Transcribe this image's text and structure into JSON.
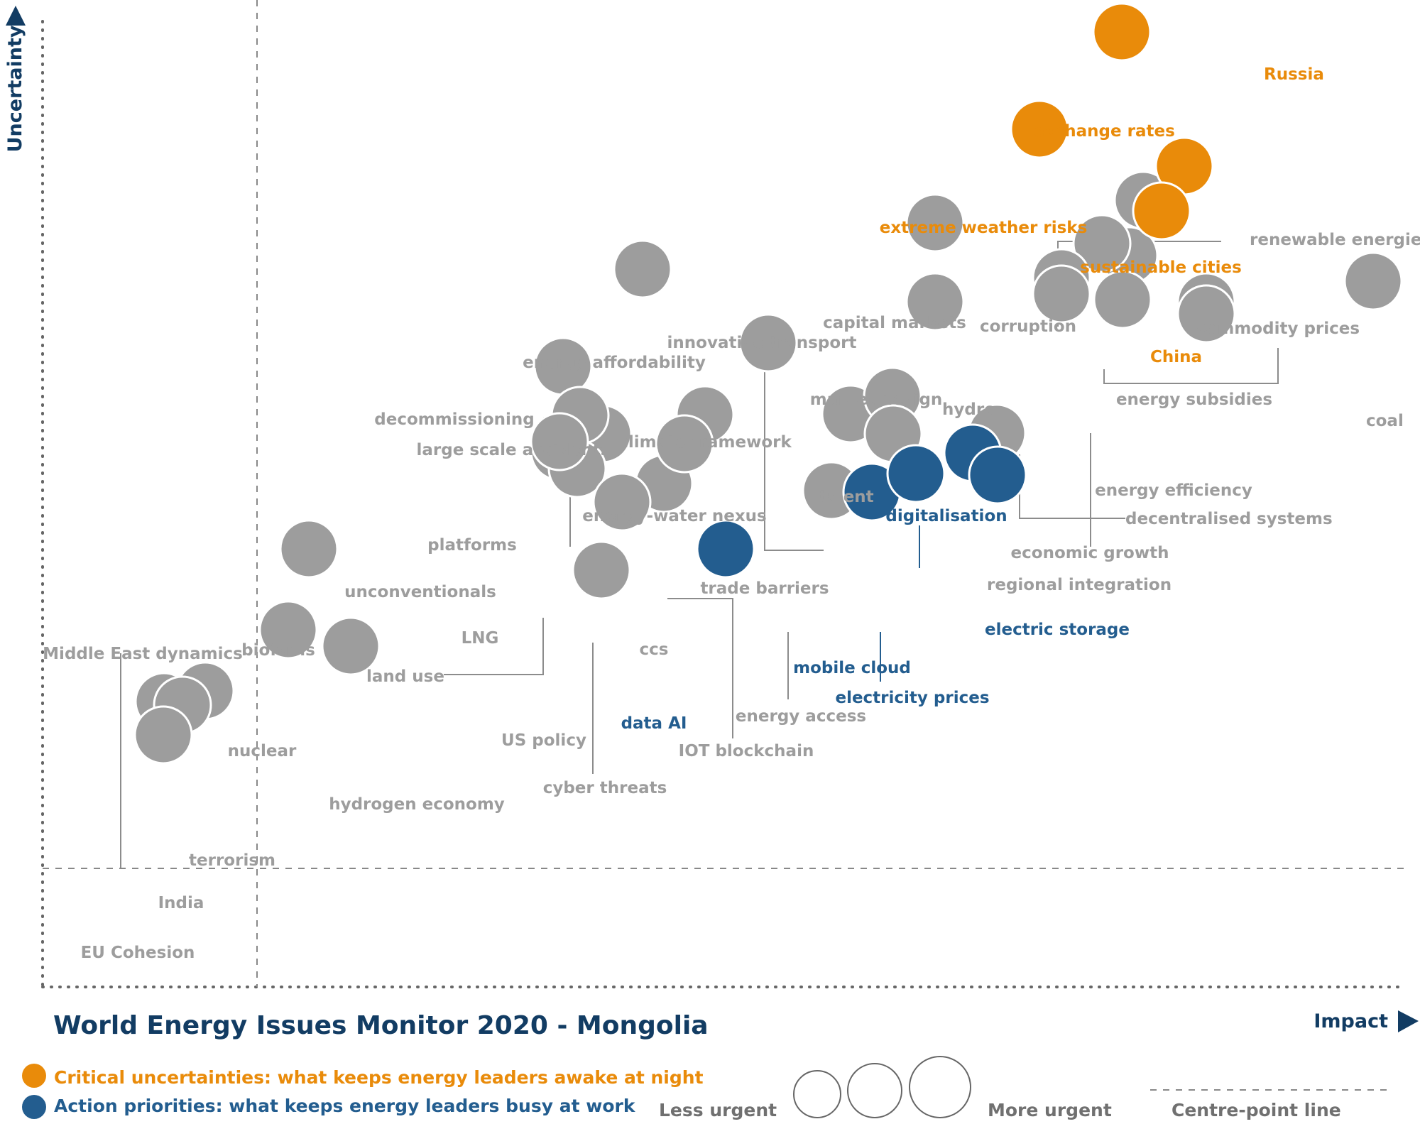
{
  "chart_data": {
    "type": "scatter",
    "title": "World Energy Issues Monitor 2020 - Mongolia",
    "xlabel": "Impact",
    "ylabel": "Uncertainty",
    "colors": {
      "neutral": "#9d9d9d",
      "critical": "#e98b0a",
      "action": "#235d8f",
      "title": "#123c63",
      "axis": "#555555"
    },
    "points": [
      {
        "label": "Russia",
        "impact": 1728,
        "uncertainty": 1480,
        "category": "critical"
      },
      {
        "label": "exchange rates",
        "impact": 1520,
        "uncertainty": 1345,
        "category": "critical"
      },
      {
        "label": "extreme weather risks",
        "impact": 1404,
        "uncertainty": 1208,
        "category": "critical"
      },
      {
        "label": "sustainable cities",
        "impact": 1608,
        "uncertainty": 1156,
        "category": "critical"
      },
      {
        "label": "China",
        "impact": 1576,
        "uncertainty": 1093,
        "category": "critical"
      },
      {
        "label": "corruption",
        "impact": 1550,
        "uncertainty": 1108,
        "category": "neutral"
      },
      {
        "label": "renewable energies",
        "impact": 1530,
        "uncertainty": 1030,
        "category": "neutral"
      },
      {
        "label": "commodity prices",
        "impact": 1492,
        "uncertainty": 1047,
        "category": "neutral"
      },
      {
        "label": "hydro",
        "impact": 1435,
        "uncertainty": 999,
        "category": "neutral"
      },
      {
        "label": "decentralised systems",
        "impact": 1435,
        "uncertainty": 976,
        "category": "neutral"
      },
      {
        "label": "economic growth",
        "impact": 1521,
        "uncertainty": 968,
        "category": "neutral"
      },
      {
        "label": "energy subsidies",
        "impact": 1639,
        "uncertainty": 965,
        "category": "neutral"
      },
      {
        "label": "energy efficiency",
        "impact": 1639,
        "uncertainty": 948,
        "category": "neutral"
      },
      {
        "label": "coal",
        "impact": 1874,
        "uncertainty": 994,
        "category": "neutral"
      },
      {
        "label": "capital markets",
        "impact": 1257,
        "uncertainty": 1076,
        "category": "neutral"
      },
      {
        "label": "market design",
        "impact": 1257,
        "uncertainty": 965,
        "category": "neutral"
      },
      {
        "label": "innovative transport",
        "impact": 1138,
        "uncertainty": 807,
        "category": "neutral"
      },
      {
        "label": "talent",
        "impact": 1197,
        "uncertainty": 832,
        "category": "neutral"
      },
      {
        "label": "trade barriers",
        "impact": 1198,
        "uncertainty": 779,
        "category": "neutral"
      },
      {
        "label": "energy access",
        "impact": 1111,
        "uncertainty": 699,
        "category": "neutral"
      },
      {
        "label": "mobile cloud",
        "impact": 1168,
        "uncertainty": 697,
        "category": "action"
      },
      {
        "label": "electricity prices",
        "impact": 1230,
        "uncertainty": 723,
        "category": "action"
      },
      {
        "label": "digitalisation",
        "impact": 1310,
        "uncertainty": 752,
        "category": "action"
      },
      {
        "label": "electric storage",
        "impact": 1345,
        "uncertainty": 721,
        "category": "action"
      },
      {
        "label": "regional integration",
        "impact": 1344,
        "uncertainty": 780,
        "category": "neutral"
      },
      {
        "label": "climate framework",
        "impact": 1022,
        "uncertainty": 907,
        "category": "neutral"
      },
      {
        "label": "energy affordability",
        "impact": 845,
        "uncertainty": 1011,
        "category": "neutral"
      },
      {
        "label": "decommissioning",
        "impact": 789,
        "uncertainty": 779,
        "category": "neutral"
      },
      {
        "label": "large scale accidents",
        "impact": 733,
        "uncertainty": 874,
        "category": "neutral"
      },
      {
        "label": "platforms",
        "impact": 757,
        "uncertainty": 805,
        "category": "neutral"
      },
      {
        "label": "unconventionals",
        "impact": 728,
        "uncertainty": 754,
        "category": "neutral"
      },
      {
        "label": "LNG",
        "impact": 753,
        "uncertainty": 730,
        "category": "neutral"
      },
      {
        "label": "land use",
        "impact": 728,
        "uncertainty": 768,
        "category": "neutral"
      },
      {
        "label": "energy-water nexus",
        "impact": 933,
        "uncertainty": 806,
        "category": "neutral"
      },
      {
        "label": "ccs",
        "impact": 875,
        "uncertainty": 709,
        "category": "neutral"
      },
      {
        "label": "IOT blockchain",
        "impact": 904,
        "uncertainty": 765,
        "category": "neutral"
      },
      {
        "label": "cyber threats",
        "impact": 816,
        "uncertainty": 683,
        "category": "neutral"
      },
      {
        "label": "US policy",
        "impact": 787,
        "uncertainty": 587,
        "category": "neutral"
      },
      {
        "label": "data AI",
        "impact": 962,
        "uncertainty": 617,
        "category": "action"
      },
      {
        "label": "biofuels",
        "impact": 375,
        "uncertainty": 617,
        "category": "neutral"
      },
      {
        "label": "Middle East dynamics",
        "impact": 171,
        "uncertainty": 402,
        "category": "neutral"
      },
      {
        "label": "nuclear",
        "impact": 346,
        "uncertainty": 503,
        "category": "neutral"
      },
      {
        "label": "hydrogen economy",
        "impact": 434,
        "uncertainty": 480,
        "category": "neutral"
      },
      {
        "label": "terrorism",
        "impact": 229,
        "uncertainty": 417,
        "category": "neutral"
      },
      {
        "label": "India",
        "impact": 197,
        "uncertainty": 397,
        "category": "neutral"
      },
      {
        "label": "EU Cohesion",
        "impact": 170,
        "uncertainty": 355,
        "category": "neutral"
      }
    ],
    "legend": {
      "critical": "Critical uncertainties: what keeps energy leaders awake at night",
      "action": "Action priorities: what keeps energy leaders busy at work",
      "less_urgent": "Less urgent",
      "more_urgent": "More urgent",
      "centre_line": "Centre-point  line"
    }
  }
}
